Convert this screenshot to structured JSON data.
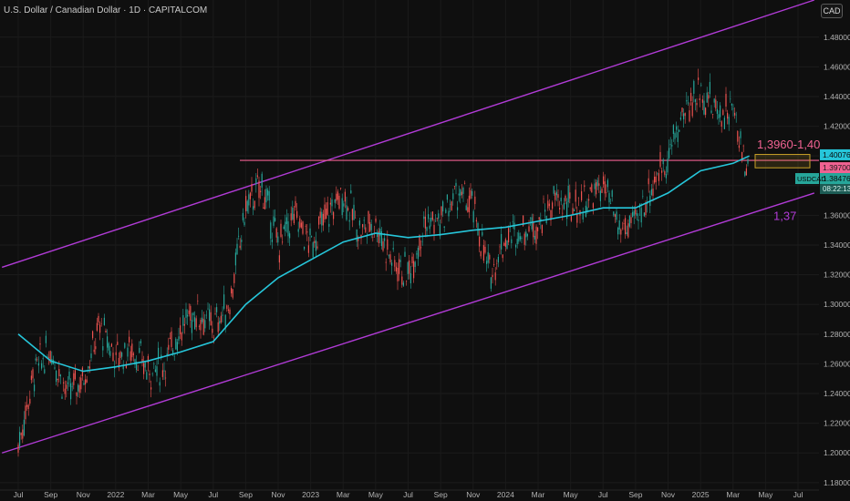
{
  "header": {
    "title": "U.S. Dollar / Canadian Dollar · 1D · CAPITALCOM",
    "currency": "CAD"
  },
  "chart_data": {
    "type": "line",
    "instrument": "USDCAD",
    "x_ticks": [
      "Jul",
      "Sep",
      "Nov",
      "2022",
      "Mar",
      "May",
      "Jul",
      "Sep",
      "Nov",
      "2023",
      "Mar",
      "May",
      "Jul",
      "Sep",
      "Nov",
      "2024",
      "Mar",
      "May",
      "Jul",
      "Sep",
      "Nov",
      "2025",
      "Mar",
      "May",
      "Jul"
    ],
    "y_ticks": [
      1.18,
      1.2,
      1.22,
      1.24,
      1.26,
      1.28,
      1.3,
      1.32,
      1.34,
      1.36,
      1.38,
      1.4,
      1.42,
      1.44,
      1.46,
      1.48
    ],
    "ylim": [
      1.175,
      1.505
    ],
    "price_series": {
      "name": "USDCAD",
      "points": [
        [
          "Jul 2021",
          1.205
        ],
        [
          "Aug 2021",
          1.255
        ],
        [
          "Sep 2021",
          1.27
        ],
        [
          "Oct 2021",
          1.24
        ],
        [
          "Nov 2021",
          1.25
        ],
        [
          "Dec 2021",
          1.285
        ],
        [
          "Jan 2022",
          1.265
        ],
        [
          "Feb 2022",
          1.27
        ],
        [
          "Mar 2022",
          1.255
        ],
        [
          "Apr 2022",
          1.26
        ],
        [
          "May 2022",
          1.285
        ],
        [
          "Jun 2022",
          1.295
        ],
        [
          "Jul 2022",
          1.285
        ],
        [
          "Aug 2022",
          1.3
        ],
        [
          "Sep 2022",
          1.365
        ],
        [
          "Oct 2022",
          1.38
        ],
        [
          "Nov 2022",
          1.34
        ],
        [
          "Dec 2022",
          1.36
        ],
        [
          "Jan 2023",
          1.34
        ],
        [
          "Feb 2023",
          1.36
        ],
        [
          "Mar 2023",
          1.375
        ],
        [
          "Apr 2023",
          1.35
        ],
        [
          "May 2023",
          1.355
        ],
        [
          "Jun 2023",
          1.33
        ],
        [
          "Jul 2023",
          1.32
        ],
        [
          "Aug 2023",
          1.355
        ],
        [
          "Sep 2023",
          1.355
        ],
        [
          "Oct 2023",
          1.375
        ],
        [
          "Nov 2023",
          1.365
        ],
        [
          "Dec 2023",
          1.32
        ],
        [
          "Jan 2024",
          1.345
        ],
        [
          "Feb 2024",
          1.35
        ],
        [
          "Mar 2024",
          1.355
        ],
        [
          "Apr 2024",
          1.37
        ],
        [
          "May 2024",
          1.365
        ],
        [
          "Jun 2024",
          1.37
        ],
        [
          "Jul 2024",
          1.38
        ],
        [
          "Aug 2024",
          1.35
        ],
        [
          "Sep 2024",
          1.355
        ],
        [
          "Oct 2024",
          1.38
        ],
        [
          "Nov 2024",
          1.4
        ],
        [
          "Dec 2024",
          1.43
        ],
        [
          "Jan 2025",
          1.445
        ],
        [
          "Feb 2025",
          1.43
        ],
        [
          "Mar 2025",
          1.43
        ],
        [
          "Apr 2025",
          1.385
        ]
      ]
    },
    "moving_average": {
      "points": [
        [
          "Jul 2021",
          1.28
        ],
        [
          "Sep 2021",
          1.262
        ],
        [
          "Nov 2021",
          1.255
        ],
        [
          "Jan 2022",
          1.258
        ],
        [
          "Mar 2022",
          1.262
        ],
        [
          "May 2022",
          1.268
        ],
        [
          "Jul 2022",
          1.275
        ],
        [
          "Sep 2022",
          1.3
        ],
        [
          "Nov 2022",
          1.318
        ],
        [
          "Jan 2023",
          1.33
        ],
        [
          "Mar 2023",
          1.342
        ],
        [
          "May 2023",
          1.348
        ],
        [
          "Jul 2023",
          1.345
        ],
        [
          "Sep 2023",
          1.347
        ],
        [
          "Nov 2023",
          1.35
        ],
        [
          "Jan 2024",
          1.352
        ],
        [
          "Mar 2024",
          1.356
        ],
        [
          "May 2024",
          1.36
        ],
        [
          "Jul 2024",
          1.365
        ],
        [
          "Sep 2024",
          1.365
        ],
        [
          "Nov 2024",
          1.375
        ],
        [
          "Jan 2025",
          1.39
        ],
        [
          "Mar 2025",
          1.395
        ],
        [
          "Apr 2025",
          1.4
        ]
      ]
    },
    "channel_upper": [
      [
        "Jun 2021",
        1.325
      ],
      [
        "Aug 2025",
        1.505
      ]
    ],
    "channel_lower": [
      [
        "Jun 2021",
        1.2
      ],
      [
        "Aug 2025",
        1.375
      ]
    ],
    "resistance_level": 1.397,
    "annotations": [
      {
        "text": "1,3960-1,40",
        "x": "Mar 2025",
        "y": 1.405
      },
      {
        "text": "1,37",
        "x": "Apr 2025",
        "y": 1.357
      }
    ],
    "price_labels": [
      {
        "value": "1.40076",
        "color": "#26c6da"
      },
      {
        "value": "1.39700",
        "color": "#f06292"
      },
      {
        "value": "1.38476",
        "name": "USDCAD",
        "time": "08:22:13",
        "color": "#26a69a"
      }
    ]
  },
  "colors": {
    "channel": "#b13bd6",
    "resistance": "#f06292",
    "ma": "#26c6da",
    "up": "#26a69a",
    "down": "#ef5350",
    "zone": "#c9a227"
  }
}
